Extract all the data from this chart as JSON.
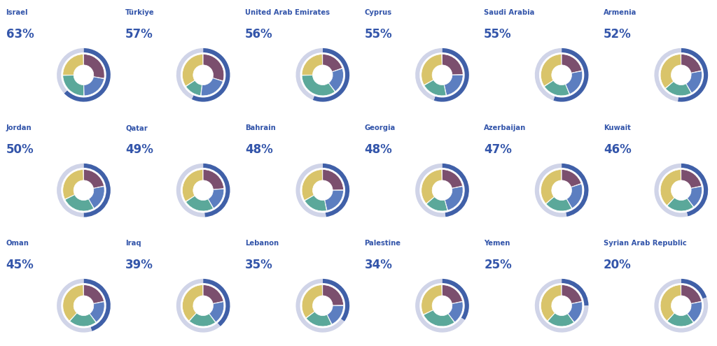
{
  "countries": [
    {
      "name": "Israel",
      "score": 63,
      "segs": [
        28,
        22,
        25,
        25
      ]
    },
    {
      "name": "Türkiye",
      "score": 57,
      "segs": [
        30,
        22,
        14,
        34
      ]
    },
    {
      "name": "United Arab Emirates",
      "score": 56,
      "segs": [
        20,
        20,
        35,
        25
      ]
    },
    {
      "name": "Cyprus",
      "score": 55,
      "segs": [
        25,
        22,
        20,
        33
      ]
    },
    {
      "name": "Saudi Arabia",
      "score": 55,
      "segs": [
        22,
        22,
        22,
        34
      ]
    },
    {
      "name": "Armenia",
      "score": 52,
      "segs": [
        22,
        20,
        22,
        36
      ]
    },
    {
      "name": "Jordan",
      "score": 50,
      "segs": [
        22,
        20,
        26,
        32
      ]
    },
    {
      "name": "Qatar",
      "score": 49,
      "segs": [
        24,
        18,
        24,
        34
      ]
    },
    {
      "name": "Bahrain",
      "score": 48,
      "segs": [
        25,
        22,
        20,
        33
      ]
    },
    {
      "name": "Georgia",
      "score": 48,
      "segs": [
        22,
        24,
        18,
        36
      ]
    },
    {
      "name": "Azerbaijan",
      "score": 47,
      "segs": [
        20,
        22,
        22,
        36
      ]
    },
    {
      "name": "Kuwait",
      "score": 46,
      "segs": [
        22,
        18,
        22,
        38
      ]
    },
    {
      "name": "Oman",
      "score": 45,
      "segs": [
        22,
        18,
        22,
        38
      ]
    },
    {
      "name": "Iraq",
      "score": 39,
      "segs": [
        22,
        18,
        22,
        38
      ]
    },
    {
      "name": "Lebanon",
      "score": 35,
      "segs": [
        25,
        18,
        22,
        35
      ]
    },
    {
      "name": "Palestine",
      "score": 34,
      "segs": [
        22,
        18,
        28,
        32
      ]
    },
    {
      "name": "Yemen",
      "score": 25,
      "segs": [
        22,
        18,
        22,
        38
      ]
    },
    {
      "name": "Syrian Arab Republic",
      "score": 20,
      "segs": [
        22,
        18,
        22,
        38
      ]
    }
  ],
  "seg_colors": [
    "#7B4F6E",
    "#5C7EC0",
    "#5BA89A",
    "#D9C46A"
  ],
  "ring_active": "#4060A8",
  "ring_inactive": "#D0D4E8",
  "text_color": "#3355AA",
  "bg": "#FFFFFF",
  "rows": 3,
  "cols": 6,
  "figsize": [
    10.24,
    4.95
  ],
  "dpi": 100
}
